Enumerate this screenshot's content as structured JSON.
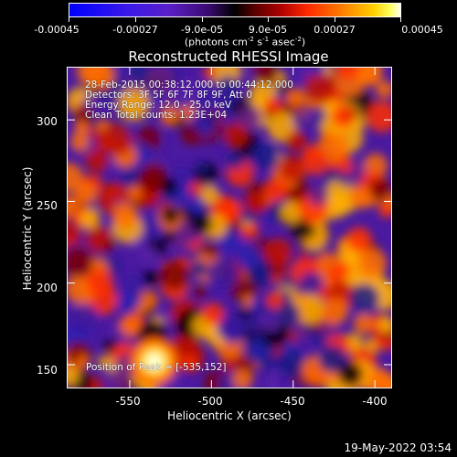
{
  "colorbar": {
    "tick_labels": [
      "-0.00045",
      "-0.00027",
      "-9.0e-05",
      "9.0e-05",
      "0.00027",
      "0.00045"
    ],
    "unit_label": "(photons cm",
    "unit_exp1": "-2",
    "unit_mid1": " s",
    "unit_exp2": "-1",
    "unit_mid2": " asec",
    "unit_exp3": "-2",
    "unit_end": ")",
    "range": [
      -0.00045,
      0.00045
    ]
  },
  "map": {
    "title": "Reconstructed RHESSI Image",
    "annotation": {
      "time": "28-Feb-2015 00:38:12.000 to 00:44:12.000",
      "detectors": "Detectors: 3F 5F 6F 7F 8F 9F, Att 0",
      "energy": "Energy Range: 12.0 - 25.0 keV",
      "clean": "Clean    Total counts: 1.23E+04",
      "position": "Position of Peak = [-535,152]"
    },
    "xlabel": "Heliocentric X (arcsec)",
    "ylabel": "Heliocentric Y (arcsec)",
    "x_ticks": [
      "-550",
      "-500",
      "-450",
      "-400"
    ],
    "y_ticks": [
      "150",
      "200",
      "250",
      "300"
    ],
    "xlim": [
      -588,
      -390
    ],
    "ylim": [
      136,
      332
    ],
    "peak": [
      -535,
      152
    ]
  },
  "footer": {
    "date": "19-May-2022 03:54"
  }
}
